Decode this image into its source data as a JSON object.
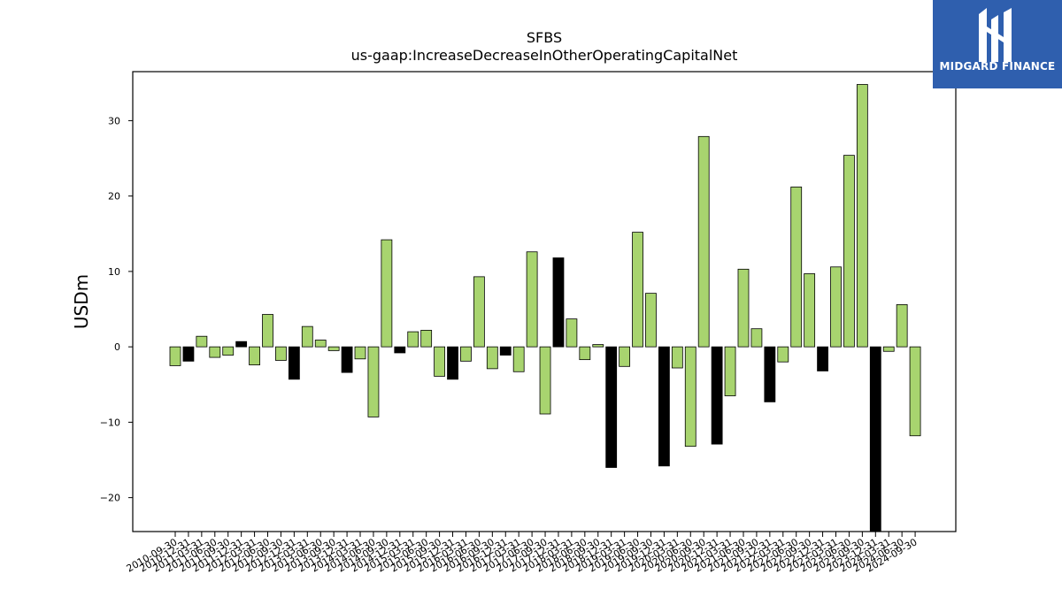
{
  "chart_data": {
    "type": "bar",
    "title": "SFBS",
    "subtitle": "us-gaap:IncreaseDecreaseInOtherOperatingCapitalNet",
    "ylabel": "USDm",
    "xlabel": "",
    "ylim": [
      -24.5,
      36.5
    ],
    "yticks": [
      -20,
      -10,
      0,
      10,
      20,
      30
    ],
    "grid": false,
    "categories": [
      "2010-09-30",
      "2010-12-31",
      "2011-03-31",
      "2011-06-30",
      "2011-09-30",
      "2011-12-31",
      "2012-03-31",
      "2012-06-30",
      "2012-09-30",
      "2012-12-31",
      "2013-03-31",
      "2013-06-30",
      "2013-09-30",
      "2013-12-31",
      "2014-03-31",
      "2014-06-30",
      "2014-09-30",
      "2014-12-31",
      "2015-03-31",
      "2015-06-30",
      "2015-09-30",
      "2015-12-31",
      "2016-03-31",
      "2016-06-30",
      "2016-09-30",
      "2016-12-31",
      "2017-03-31",
      "2017-06-30",
      "2017-09-30",
      "2017-12-31",
      "2018-03-31",
      "2018-06-30",
      "2018-09-30",
      "2018-12-31",
      "2019-03-31",
      "2019-06-30",
      "2019-09-30",
      "2019-12-31",
      "2020-03-31",
      "2020-06-30",
      "2020-09-30",
      "2020-12-31",
      "2021-03-31",
      "2021-06-30",
      "2021-09-30",
      "2021-12-31",
      "2022-03-31",
      "2022-06-30",
      "2022-09-30",
      "2022-12-31",
      "2023-03-31",
      "2023-06-30",
      "2023-09-30",
      "2023-12-31",
      "2024-03-31",
      "2024-06-30",
      "2024-09-30"
    ],
    "values": [
      -2.5,
      -1.9,
      1.4,
      -1.4,
      -1.1,
      0.7,
      -2.4,
      4.3,
      -1.8,
      -4.3,
      2.7,
      0.9,
      -0.5,
      -3.4,
      -1.6,
      -9.3,
      14.2,
      -0.8,
      2.0,
      2.2,
      -3.9,
      -4.3,
      -1.9,
      9.3,
      -2.9,
      -1.1,
      -3.3,
      12.6,
      -8.9,
      11.8,
      3.7,
      -1.7,
      0.3,
      -16.0,
      -2.6,
      15.2,
      7.1,
      -15.8,
      -2.8,
      -13.2,
      27.9,
      -12.9,
      -6.5,
      10.3,
      2.4,
      -7.3,
      -2.0,
      21.2,
      9.7,
      -3.2,
      10.6,
      25.4,
      34.8,
      -24.5,
      -0.6,
      5.6,
      -11.8
    ],
    "bar_fill": [
      "#a8d46f",
      "#000000",
      "#a8d46f",
      "#a8d46f",
      "#a8d46f",
      "#000000",
      "#a8d46f",
      "#a8d46f",
      "#a8d46f",
      "#000000",
      "#a8d46f",
      "#a8d46f",
      "#a8d46f",
      "#000000",
      "#a8d46f",
      "#a8d46f",
      "#a8d46f",
      "#000000",
      "#a8d46f",
      "#a8d46f",
      "#a8d46f",
      "#000000",
      "#a8d46f",
      "#a8d46f",
      "#a8d46f",
      "#000000",
      "#a8d46f",
      "#a8d46f",
      "#a8d46f",
      "#000000",
      "#a8d46f",
      "#a8d46f",
      "#a8d46f",
      "#000000",
      "#a8d46f",
      "#a8d46f",
      "#a8d46f",
      "#000000",
      "#a8d46f",
      "#a8d46f",
      "#a8d46f",
      "#000000",
      "#a8d46f",
      "#a8d46f",
      "#a8d46f",
      "#000000",
      "#a8d46f",
      "#a8d46f",
      "#a8d46f",
      "#000000",
      "#a8d46f",
      "#a8d46f",
      "#a8d46f",
      "#000000",
      "#a8d46f",
      "#a8d46f",
      "#a8d46f"
    ],
    "colors": {
      "positive": "#a8d46f",
      "year_end": "#000000",
      "edge": "#000000"
    }
  },
  "logo": {
    "text": "MIDGARD FINANCE",
    "background": "#2f5fae"
  }
}
